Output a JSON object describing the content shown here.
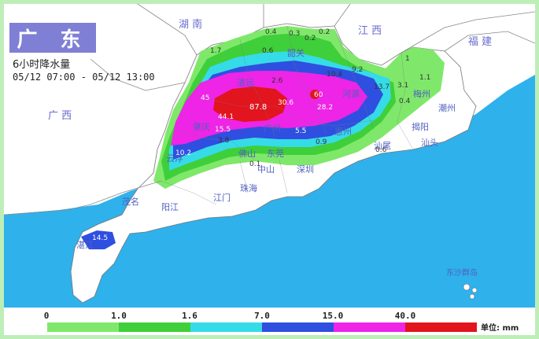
{
  "header": {
    "title": "广 东",
    "subtitle": "6小时降水量",
    "time_range": "05/12 07:00 - 05/12 13:00"
  },
  "map_labels": {
    "neighbors": [
      {
        "text": "湖 南"
      },
      {
        "text": "江 西"
      },
      {
        "text": "福 建"
      },
      {
        "text": "广 西"
      }
    ],
    "cities": [
      {
        "text": "韶关"
      },
      {
        "text": "清远"
      },
      {
        "text": "河源"
      },
      {
        "text": "梅州"
      },
      {
        "text": "潮州"
      },
      {
        "text": "揭阳"
      },
      {
        "text": "汕头"
      },
      {
        "text": "汕尾"
      },
      {
        "text": "惠州"
      },
      {
        "text": "东莞"
      },
      {
        "text": "深圳"
      },
      {
        "text": "广州"
      },
      {
        "text": "佛山"
      },
      {
        "text": "肇庆"
      },
      {
        "text": "云浮"
      },
      {
        "text": "中山"
      },
      {
        "text": "珠海"
      },
      {
        "text": "江门"
      },
      {
        "text": "阳江"
      },
      {
        "text": "茂名"
      },
      {
        "text": "湛江"
      },
      {
        "text": "东沙群岛"
      }
    ],
    "values": [
      {
        "text": "0.4"
      },
      {
        "text": "0.3"
      },
      {
        "text": "0.2"
      },
      {
        "text": "0.2"
      },
      {
        "text": "1.7"
      },
      {
        "text": "0.6"
      },
      {
        "text": "2.6"
      },
      {
        "text": "10.4"
      },
      {
        "text": "9.2"
      },
      {
        "text": "1"
      },
      {
        "text": "1.1"
      },
      {
        "text": "13.7"
      },
      {
        "text": "3.1"
      },
      {
        "text": "0.4"
      },
      {
        "text": "45"
      },
      {
        "text": "87.8"
      },
      {
        "text": "30.6"
      },
      {
        "text": "60"
      },
      {
        "text": "28.2"
      },
      {
        "text": "44.1"
      },
      {
        "text": "15.5"
      },
      {
        "text": "5.5"
      },
      {
        "text": "0.9"
      },
      {
        "text": "3.8"
      },
      {
        "text": "10.2"
      },
      {
        "text": "0.6"
      },
      {
        "text": "0.1"
      },
      {
        "text": "14.5"
      }
    ]
  },
  "legend": {
    "ticks": [
      "0",
      "1.0",
      "1.6",
      "7.0",
      "15.0",
      "40.0"
    ],
    "colors": [
      "#7fe86a",
      "#3fcf3a",
      "#36dbe8",
      "#2f4fe0",
      "#ee24e6",
      "#e2141e"
    ],
    "unit": "单位: mm"
  },
  "colors": {
    "ocean": "#2fb1ec",
    "land": "#ffffff",
    "frame": "#bdeeb8",
    "title_bg": "#7f7fd5"
  }
}
